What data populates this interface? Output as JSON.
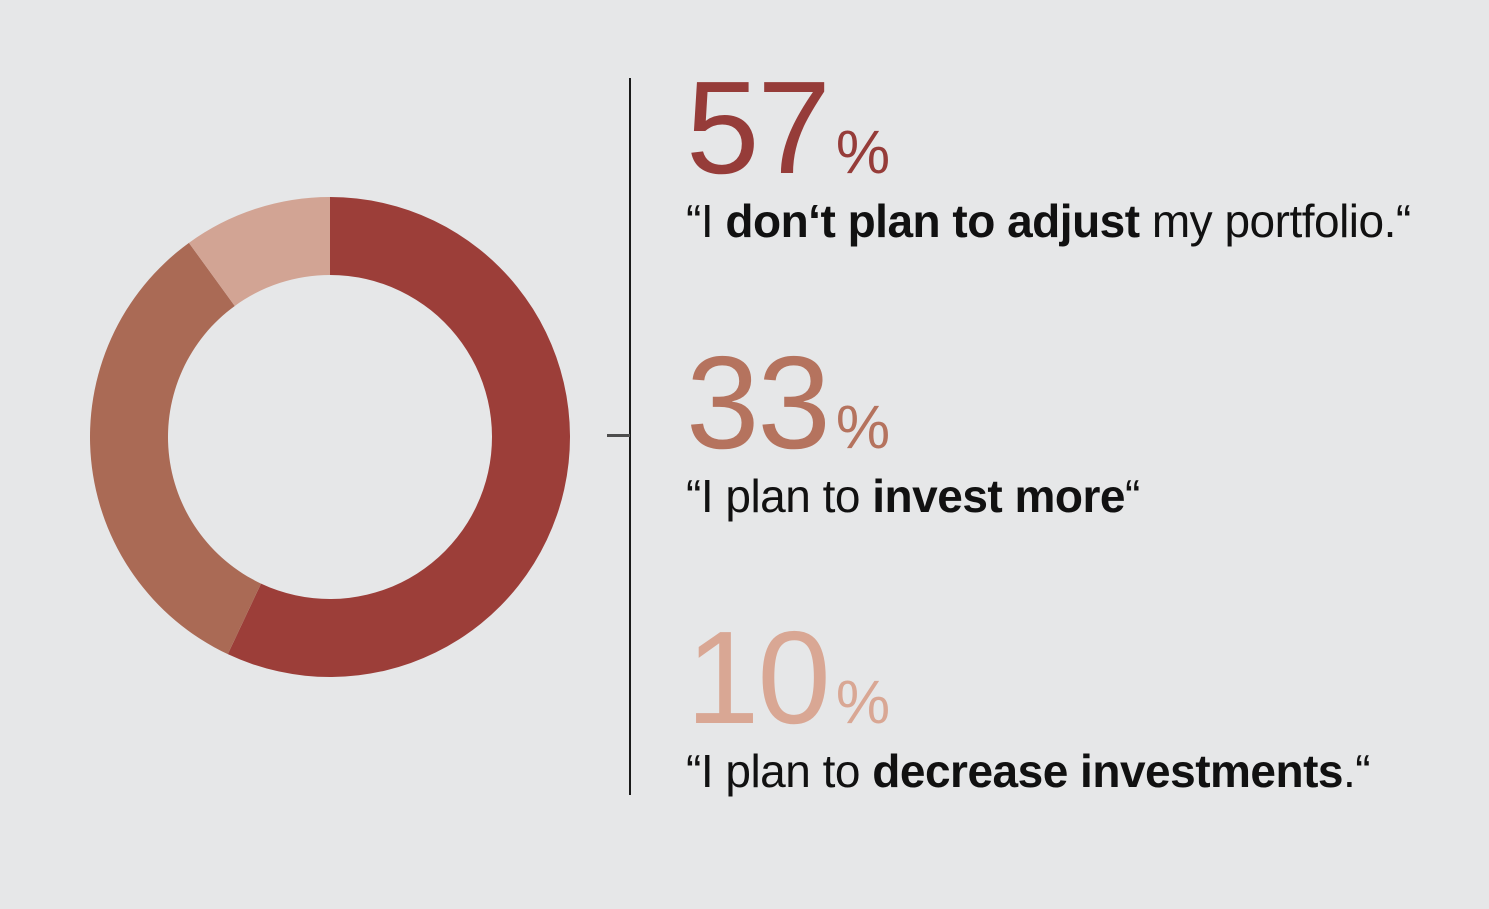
{
  "background_color": "#e6e7e8",
  "divider": {
    "line_color": "#1a1a1a",
    "tick_color": "#4d4d4d"
  },
  "chart_data": {
    "type": "pie",
    "variant": "donut",
    "start_angle_deg": 0,
    "direction": "clockwise",
    "outer_radius": 240,
    "inner_radius": 162,
    "legend_position": "right",
    "slices": [
      {
        "label": "I don‘t plan to adjust my portfolio.",
        "value": 57,
        "color": "#9c3e39"
      },
      {
        "label": "I plan to invest more",
        "value": 33,
        "color": "#aa6a55"
      },
      {
        "label": "I plan to decrease investments.",
        "value": 10,
        "color": "#d2a494"
      }
    ]
  },
  "callouts": [
    {
      "percent": "57",
      "percent_sign": "%",
      "color": "#963c39",
      "quote_prefix": "“I ",
      "quote_bold": "don‘t plan to adjust",
      "quote_suffix": " my portfolio.“"
    },
    {
      "percent": "33",
      "percent_sign": "%",
      "color": "#b5735e",
      "quote_prefix": "“I plan to ",
      "quote_bold": "invest more",
      "quote_suffix": "“"
    },
    {
      "percent": "10",
      "percent_sign": "%",
      "color": "#d9a794",
      "quote_prefix": "“I plan to ",
      "quote_bold": "decrease investments",
      "quote_suffix": ".“"
    }
  ]
}
